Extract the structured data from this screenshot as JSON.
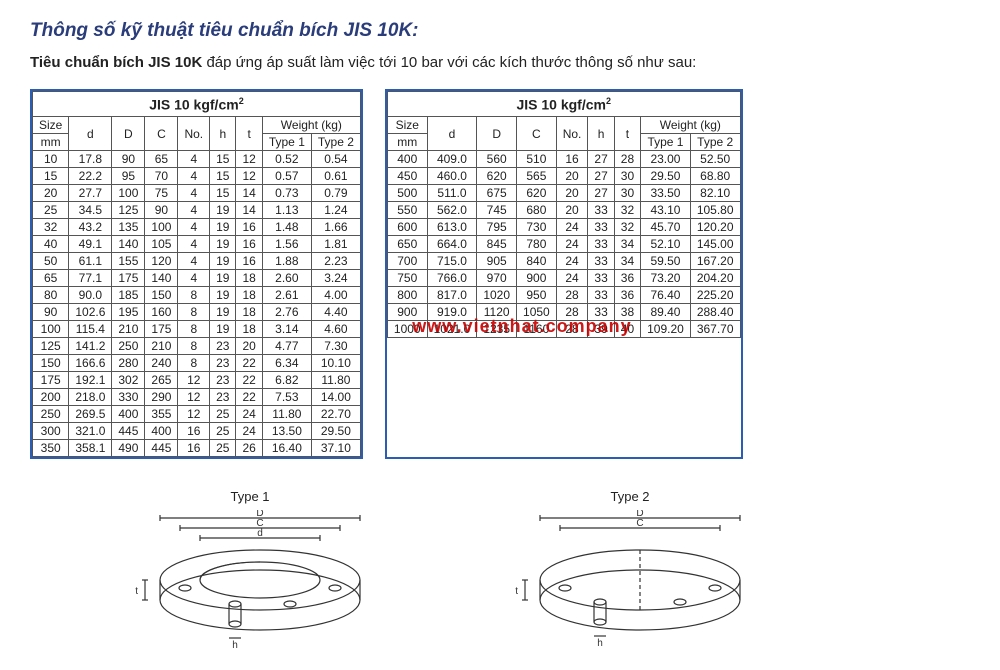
{
  "heading": "Thông số kỹ thuật tiêu chuẩn bích JIS 10K:",
  "intro_bold": "Tiêu chuẩn bích JIS 10K",
  "intro_rest": " đáp ứng áp suất làm việc tới 10 bar với các kích thước thông số như sau:",
  "table_title": "JIS 10 kgf/cm",
  "table_title_sup": "2",
  "columns": {
    "size": "Size",
    "size_unit": "mm",
    "d": "d",
    "Dcap": "D",
    "C": "C",
    "No": "No.",
    "h": "h",
    "t": "t",
    "weight": "Weight (kg)",
    "type1": "Type 1",
    "type2": "Type 2"
  },
  "table_left": [
    [
      "10",
      "17.8",
      "90",
      "65",
      "4",
      "15",
      "12",
      "0.52",
      "0.54"
    ],
    [
      "15",
      "22.2",
      "95",
      "70",
      "4",
      "15",
      "12",
      "0.57",
      "0.61"
    ],
    [
      "20",
      "27.7",
      "100",
      "75",
      "4",
      "15",
      "14",
      "0.73",
      "0.79"
    ],
    [
      "25",
      "34.5",
      "125",
      "90",
      "4",
      "19",
      "14",
      "1.13",
      "1.24"
    ],
    [
      "32",
      "43.2",
      "135",
      "100",
      "4",
      "19",
      "16",
      "1.48",
      "1.66"
    ],
    [
      "40",
      "49.1",
      "140",
      "105",
      "4",
      "19",
      "16",
      "1.56",
      "1.81"
    ],
    [
      "50",
      "61.1",
      "155",
      "120",
      "4",
      "19",
      "16",
      "1.88",
      "2.23"
    ],
    [
      "65",
      "77.1",
      "175",
      "140",
      "4",
      "19",
      "18",
      "2.60",
      "3.24"
    ],
    [
      "80",
      "90.0",
      "185",
      "150",
      "8",
      "19",
      "18",
      "2.61",
      "4.00"
    ],
    [
      "90",
      "102.6",
      "195",
      "160",
      "8",
      "19",
      "18",
      "2.76",
      "4.40"
    ],
    [
      "100",
      "115.4",
      "210",
      "175",
      "8",
      "19",
      "18",
      "3.14",
      "4.60"
    ],
    [
      "125",
      "141.2",
      "250",
      "210",
      "8",
      "23",
      "20",
      "4.77",
      "7.30"
    ],
    [
      "150",
      "166.6",
      "280",
      "240",
      "8",
      "23",
      "22",
      "6.34",
      "10.10"
    ],
    [
      "175",
      "192.1",
      "302",
      "265",
      "12",
      "23",
      "22",
      "6.82",
      "11.80"
    ],
    [
      "200",
      "218.0",
      "330",
      "290",
      "12",
      "23",
      "22",
      "7.53",
      "14.00"
    ],
    [
      "250",
      "269.5",
      "400",
      "355",
      "12",
      "25",
      "24",
      "11.80",
      "22.70"
    ],
    [
      "300",
      "321.0",
      "445",
      "400",
      "16",
      "25",
      "24",
      "13.50",
      "29.50"
    ],
    [
      "350",
      "358.1",
      "490",
      "445",
      "16",
      "25",
      "26",
      "16.40",
      "37.10"
    ]
  ],
  "table_right": [
    [
      "400",
      "409.0",
      "560",
      "510",
      "16",
      "27",
      "28",
      "23.00",
      "52.50"
    ],
    [
      "450",
      "460.0",
      "620",
      "565",
      "20",
      "27",
      "30",
      "29.50",
      "68.80"
    ],
    [
      "500",
      "511.0",
      "675",
      "620",
      "20",
      "27",
      "30",
      "33.50",
      "82.10"
    ],
    [
      "550",
      "562.0",
      "745",
      "680",
      "20",
      "33",
      "32",
      "43.10",
      "105.80"
    ],
    [
      "600",
      "613.0",
      "795",
      "730",
      "24",
      "33",
      "32",
      "45.70",
      "120.20"
    ],
    [
      "650",
      "664.0",
      "845",
      "780",
      "24",
      "33",
      "34",
      "52.10",
      "145.00"
    ],
    [
      "700",
      "715.0",
      "905",
      "840",
      "24",
      "33",
      "34",
      "59.50",
      "167.20"
    ],
    [
      "750",
      "766.0",
      "970",
      "900",
      "24",
      "33",
      "36",
      "73.20",
      "204.20"
    ],
    [
      "800",
      "817.0",
      "1020",
      "950",
      "28",
      "33",
      "36",
      "76.40",
      "225.20"
    ],
    [
      "900",
      "919.0",
      "1120",
      "1050",
      "28",
      "33",
      "38",
      "89.40",
      "288.40"
    ],
    [
      "1000",
      "1021.0",
      "1235",
      "1160",
      "28",
      "39",
      "40",
      "109.20",
      "367.70"
    ]
  ],
  "fig_type1": "Type 1",
  "fig_type2": "Type 2",
  "dim_labels": {
    "D": "D",
    "C": "C",
    "d": "d",
    "t": "t",
    "h": "h"
  },
  "watermark": "www.vietnhat.company",
  "colors": {
    "heading": "#2a3d7a",
    "border_box": "#2a5db3",
    "border_cell": "#555555",
    "text": "#222222",
    "watermark": "#c80000",
    "bg": "#ffffff"
  },
  "fontsize": {
    "heading": 19,
    "body": 15,
    "table": 12,
    "table_title": 14
  }
}
